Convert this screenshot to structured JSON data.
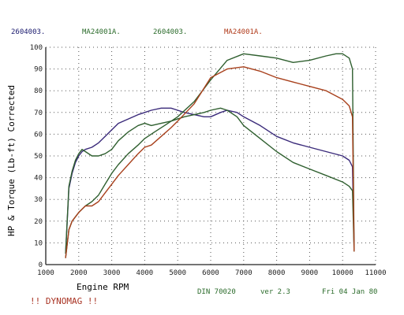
{
  "legend": [
    {
      "label": "2604003.",
      "color": "#1a1a6e"
    },
    {
      "label": "MA24001A.",
      "color": "#2b6b2b"
    },
    {
      "label": "2604003.",
      "color": "#2b6b2b"
    },
    {
      "label": "MA24001A.",
      "color": "#b03a1a"
    }
  ],
  "ylabel": "HP & Torque  (Lb-ft)  Corrected",
  "xlabel": "Engine RPM",
  "footer": {
    "din": "DIN 70020",
    "version": "ver 2.3",
    "date": "Fri 04 Jan 80"
  },
  "brand": "!! DYNOMAG !!",
  "colors": {
    "purple": "#3a2a7a",
    "green": "#2f5f2f",
    "red": "#a8401c",
    "grid": "#555555"
  },
  "chart_data": {
    "type": "line",
    "xlabel": "Engine RPM",
    "ylabel": "HP & Torque  (Lb-ft)  Corrected",
    "xlim": [
      1000,
      11000
    ],
    "ylim": [
      0,
      100
    ],
    "xticks": [
      1000,
      2000,
      3000,
      4000,
      5000,
      6000,
      7000,
      8000,
      9000,
      10000,
      11000
    ],
    "yticks": [
      0,
      10,
      20,
      30,
      40,
      50,
      60,
      70,
      80,
      90,
      100
    ],
    "grid": true,
    "series": [
      {
        "name": "2604003.",
        "color": "#3a2a7a",
        "x": [
          1600,
          1700,
          1800,
          1900,
          2000,
          2100,
          2200,
          2400,
          2600,
          2800,
          3000,
          3200,
          3500,
          3800,
          4000,
          4200,
          4500,
          4800,
          5000,
          5200,
          5500,
          5800,
          6000,
          6300,
          6500,
          6800,
          7000,
          7500,
          8000,
          8500,
          9000,
          9500,
          10000,
          10200,
          10300,
          10350
        ],
        "y": [
          5,
          35,
          42,
          47,
          50,
          52,
          53,
          54,
          56,
          59,
          62,
          65,
          67,
          69,
          70,
          71,
          72,
          72,
          71,
          70,
          69,
          68,
          68,
          70,
          71,
          70,
          68,
          64,
          59,
          56,
          54,
          52,
          50,
          48,
          45,
          8
        ]
      },
      {
        "name": "MA24001A.",
        "color": "#2f5f2f",
        "x": [
          1600,
          1700,
          1800,
          1900,
          2000,
          2100,
          2200,
          2400,
          2600,
          2800,
          3000,
          3200,
          3500,
          3800,
          4000,
          4200,
          4500,
          4800,
          5000,
          5200,
          5500,
          5800,
          6000,
          6300,
          6500,
          6800,
          7000,
          7500,
          8000,
          8500,
          9000,
          9500,
          10000,
          10200,
          10300,
          10350
        ],
        "y": [
          5,
          36,
          43,
          48,
          51,
          53,
          52,
          50,
          50,
          51,
          53,
          57,
          61,
          64,
          65,
          64,
          65,
          66,
          67,
          68,
          69,
          70,
          71,
          72,
          71,
          68,
          64,
          58,
          52,
          47,
          44,
          41,
          38,
          36,
          34,
          6
        ]
      },
      {
        "name": "2604003.",
        "color": "#2f5f2f",
        "x": [
          1600,
          1700,
          1800,
          2000,
          2200,
          2400,
          2600,
          2800,
          3000,
          3200,
          3500,
          3800,
          4000,
          4300,
          4600,
          5000,
          5500,
          6000,
          6500,
          7000,
          7500,
          8000,
          8500,
          9000,
          9500,
          9800,
          10000,
          10200,
          10300,
          10350
        ],
        "y": [
          3,
          16,
          20,
          24,
          27,
          29,
          32,
          37,
          42,
          46,
          51,
          55,
          58,
          61,
          64,
          68,
          75,
          85,
          94,
          97,
          96,
          95,
          93,
          94,
          96,
          97,
          97,
          95,
          90,
          6
        ]
      },
      {
        "name": "MA24001A.",
        "color": "#a8401c",
        "x": [
          1600,
          1700,
          1800,
          2000,
          2200,
          2400,
          2600,
          2800,
          3000,
          3200,
          3500,
          3800,
          4000,
          4200,
          4500,
          4800,
          5000,
          5500,
          6000,
          6500,
          7000,
          7500,
          8000,
          8500,
          9000,
          9500,
          10000,
          10200,
          10300,
          10350
        ],
        "y": [
          3,
          16,
          20,
          24,
          27,
          27,
          29,
          33,
          37,
          41,
          46,
          51,
          54,
          55,
          59,
          63,
          66,
          74,
          86,
          90,
          91,
          89,
          86,
          84,
          82,
          80,
          76,
          73,
          68,
          6
        ]
      }
    ]
  }
}
